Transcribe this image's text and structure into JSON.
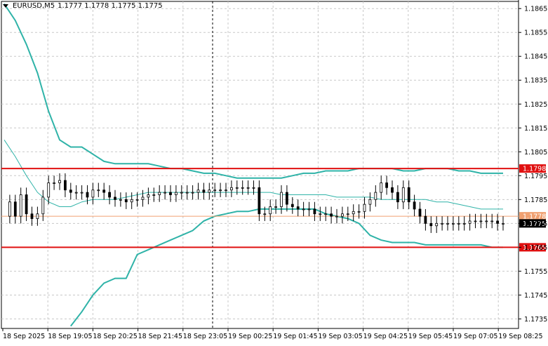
{
  "header": {
    "symbol_label": "EURUSD,M5",
    "ohlc": "1.1777 1.1778 1.1775 1.1775"
  },
  "colors": {
    "background": "#ffffff",
    "grid": "#c8c8c8",
    "bands": "#2fb3a8",
    "level_lines": "#e01010",
    "current_price": "#f0a070",
    "candle": "#000000",
    "price_label_current_bg": "#000000"
  },
  "chart_data": {
    "type": "line",
    "title": "",
    "y_ticks": [
      "1.1865",
      "1.1855",
      "1.1845",
      "1.1835",
      "1.1825",
      "1.1815",
      "1.1805",
      "1.1795",
      "1.1785",
      "1.1775",
      "1.1765",
      "1.1755",
      "1.1745",
      "1.1735"
    ],
    "ylim": [
      1.1731,
      1.1868
    ],
    "x_ticks": [
      "18 Sep 2025",
      "18 Sep 19:05",
      "18 Sep 20:25",
      "18 Sep 21:45",
      "18 Sep 23:05",
      "19 Sep 00:25",
      "19 Sep 01:45",
      "19 Sep 03:05",
      "19 Sep 04:25",
      "19 Sep 05:45",
      "19 Sep 07:05",
      "19 Sep 08:25"
    ],
    "grid": true,
    "horizontal_levels": [
      {
        "label": "1.1798",
        "value": 1.1798
      },
      {
        "label": "1.1765",
        "value": 1.1765
      }
    ],
    "current_price": {
      "label": "1.1775",
      "value": 1.1775
    },
    "bid_line": {
      "label": "1.1778",
      "value": 1.1778
    },
    "series": [
      {
        "role": "upper band",
        "x": [
          0,
          4,
          8,
          12,
          16,
          20,
          24,
          28,
          32,
          36,
          40,
          44,
          48,
          52,
          56,
          60,
          64,
          68,
          72,
          76,
          80,
          84,
          88,
          92,
          96,
          100,
          104,
          108,
          112,
          116,
          120,
          124,
          128,
          132,
          136,
          140,
          144,
          148,
          152,
          156,
          160,
          164,
          168,
          172,
          176,
          180
        ],
        "values": [
          1.1867,
          1.186,
          1.185,
          1.1838,
          1.1822,
          1.181,
          1.1807,
          1.1807,
          1.1804,
          1.1801,
          1.18,
          1.18,
          1.18,
          1.18,
          1.1799,
          1.1798,
          1.1798,
          1.1797,
          1.1796,
          1.1796,
          1.1795,
          1.1794,
          1.1794,
          1.1794,
          1.1794,
          1.1794,
          1.1795,
          1.1796,
          1.1796,
          1.1797,
          1.1797,
          1.1797,
          1.1798,
          1.1798,
          1.1798,
          1.1798,
          1.1797,
          1.1797,
          1.1798,
          1.1798,
          1.1798,
          1.1797,
          1.1797,
          1.1796,
          1.1796,
          1.1796
        ]
      },
      {
        "role": "middle band",
        "x": [
          0,
          4,
          8,
          12,
          16,
          20,
          24,
          28,
          32,
          36,
          40,
          44,
          48,
          52,
          56,
          60,
          64,
          68,
          72,
          76,
          80,
          84,
          88,
          92,
          96,
          100,
          104,
          108,
          112,
          116,
          120,
          124,
          128,
          132,
          136,
          140,
          144,
          148,
          152,
          156,
          160,
          164,
          168,
          172,
          176,
          180
        ],
        "values": [
          1.181,
          1.1803,
          1.1795,
          1.1788,
          1.1784,
          1.1782,
          1.1782,
          1.1784,
          1.1785,
          1.1785,
          1.1785,
          1.1786,
          1.1787,
          1.1788,
          1.1788,
          1.1788,
          1.1788,
          1.1788,
          1.1788,
          1.1788,
          1.1788,
          1.1788,
          1.1788,
          1.1788,
          1.1788,
          1.1787,
          1.1787,
          1.1787,
          1.1787,
          1.1787,
          1.1786,
          1.1786,
          1.1786,
          1.1786,
          1.1785,
          1.1785,
          1.1785,
          1.1785,
          1.1785,
          1.1784,
          1.1784,
          1.1783,
          1.1782,
          1.1781,
          1.1781,
          1.1781
        ]
      },
      {
        "role": "lower band",
        "x": [
          24,
          28,
          32,
          36,
          40,
          44,
          48,
          52,
          56,
          60,
          64,
          68,
          72,
          76,
          80,
          84,
          88,
          92,
          96,
          100,
          104,
          108,
          112,
          116,
          120,
          124,
          128,
          132,
          136,
          140,
          144,
          148,
          152,
          156,
          160,
          164,
          168,
          172,
          176,
          180
        ],
        "values": [
          1.1732,
          1.1738,
          1.1745,
          1.175,
          1.1752,
          1.1752,
          1.1762,
          1.1764,
          1.1766,
          1.1768,
          1.177,
          1.1772,
          1.1776,
          1.1778,
          1.1779,
          1.178,
          1.178,
          1.1781,
          1.1781,
          1.1781,
          1.1781,
          1.1781,
          1.1781,
          1.1779,
          1.1778,
          1.1777,
          1.1775,
          1.177,
          1.1768,
          1.1767,
          1.1767,
          1.1767,
          1.1766,
          1.1766,
          1.1766,
          1.1766,
          1.1766,
          1.1766,
          1.1765,
          1.1765
        ]
      },
      {
        "role": "price",
        "x": [
          0,
          2,
          4,
          6,
          8,
          10,
          12,
          14,
          16,
          18,
          20,
          22,
          24,
          26,
          28,
          30,
          32,
          34,
          36,
          38,
          40,
          42,
          44,
          46,
          48,
          50,
          52,
          54,
          56,
          58,
          60,
          62,
          64,
          66,
          68,
          70,
          72,
          74,
          76,
          78,
          80,
          82,
          84,
          86,
          88,
          90,
          92,
          94,
          96,
          98,
          100,
          102,
          104,
          106,
          108,
          110,
          112,
          114,
          116,
          118,
          120,
          122,
          124,
          126,
          128,
          130,
          132,
          134,
          136,
          138,
          140,
          142,
          144,
          146,
          148,
          150,
          152,
          154,
          156,
          158,
          160,
          162,
          164,
          166,
          168,
          170,
          172,
          174,
          176,
          178,
          180
        ],
        "values": [
          1.1778,
          1.1784,
          1.1778,
          1.1787,
          1.1779,
          1.1777,
          1.1779,
          1.1786,
          1.1792,
          1.1792,
          1.1793,
          1.1789,
          1.1788,
          1.1788,
          1.1788,
          1.1786,
          1.1789,
          1.1789,
          1.1788,
          1.1786,
          1.1785,
          1.1785,
          1.1784,
          1.1785,
          1.1785,
          1.1786,
          1.1787,
          1.1787,
          1.1788,
          1.1788,
          1.1787,
          1.1788,
          1.1788,
          1.1788,
          1.1788,
          1.1789,
          1.1788,
          1.1789,
          1.1789,
          1.1789,
          1.1789,
          1.179,
          1.179,
          1.179,
          1.179,
          1.179,
          1.1779,
          1.1779,
          1.1782,
          1.1782,
          1.1788,
          1.1783,
          1.1782,
          1.1781,
          1.1781,
          1.1781,
          1.1779,
          1.1779,
          1.1779,
          1.1778,
          1.1778,
          1.1779,
          1.1779,
          1.178,
          1.178,
          1.1783,
          1.1785,
          1.1788,
          1.1792,
          1.179,
          1.1788,
          1.1784,
          1.179,
          1.1784,
          1.1781,
          1.1778,
          1.1775,
          1.1774,
          1.1775,
          1.1775,
          1.1775,
          1.1775,
          1.1775,
          1.1775,
          1.1776,
          1.1776,
          1.1776,
          1.1776,
          1.1776,
          1.1775,
          1.1775
        ]
      }
    ]
  }
}
